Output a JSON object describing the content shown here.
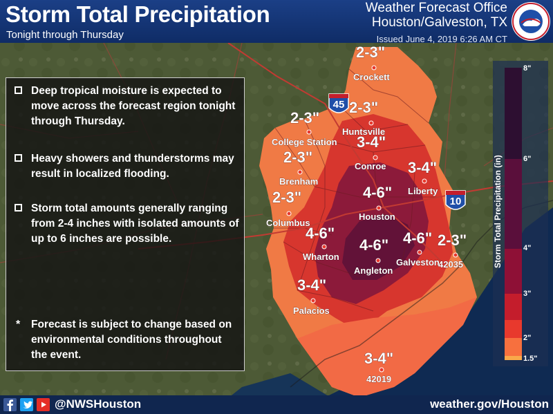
{
  "header": {
    "title": "Storm Total Precipitation",
    "subtitle": "Tonight through Thursday",
    "office_line1": "Weather Forecast Office",
    "office_line2": "Houston/Galveston, TX",
    "issued": "Issued June 4, 2019 6:26 AM CT",
    "logo_text_top": "NATIONAL WEATHER",
    "logo_text_bottom": "SERVICE"
  },
  "bullets": [
    "Deep tropical moisture is expected to move across the forecast region tonight through Thursday.",
    "Heavy showers and thunderstorms may result in localized flooding.",
    "Storm total amounts generally ranging from 2-4 inches with isolated amounts of up to 6 inches are possible."
  ],
  "note": "Forecast is subject to change based on environmental conditions throughout the event.",
  "note_marker": "*",
  "map": {
    "amount_labels": [
      "2-3\"",
      "2-3\"",
      "2-3\"",
      "2-3\"",
      "3-4\"",
      "2-3\"",
      "3-4\"",
      "4-6\"",
      "4-6\"",
      "4-6\"",
      "4-6\"",
      "2-3\"",
      "3-4\"",
      "3-4\""
    ],
    "city_labels": [
      "Crockett",
      "Huntsville",
      "College Station",
      "Conroe",
      "Brenham",
      "Liberty",
      "Houston",
      "Columbus",
      "Wharton",
      "Angleton",
      "Galveston",
      "42035",
      "Palacios",
      "42019"
    ],
    "highways": [
      "45",
      "10"
    ],
    "highway_shield_word": "INTERSTATE"
  },
  "legend": {
    "title": "Storm Total Precipitation (in)",
    "ticks": [
      "8\"",
      "6\"",
      "4\"",
      "3\"",
      "2\"",
      "1.5\""
    ],
    "colors": [
      "#f9a94a",
      "#f7703e",
      "#e8392d",
      "#c41d2c",
      "#8e1036",
      "#5a0f3b",
      "#2d0f31"
    ]
  },
  "footer": {
    "handle": "@NWSHouston",
    "website": "weather.gov/Houston",
    "social_icons": [
      "facebook-icon",
      "twitter-icon",
      "youtube-icon"
    ]
  }
}
